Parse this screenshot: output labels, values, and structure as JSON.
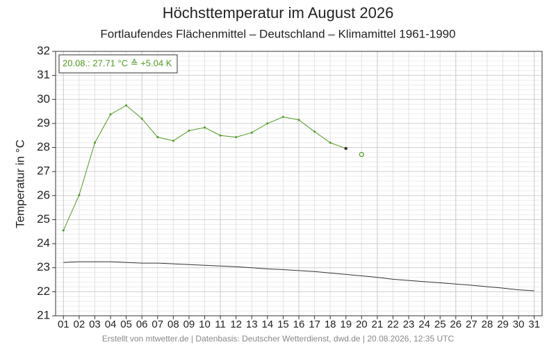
{
  "chart_data": {
    "type": "line",
    "title": "Höchsttemperatur im August 2026",
    "subtitle": "Fortlaufendes Flächenmittel – Deutschland – Klimamittel 1961-1990",
    "ylabel": "Temperatur in °C",
    "footer": "Erstellt von mtwetter.de | Datenbasis: Deutscher Wetterdienst, dwd.de | 20.08.2026, 12:35 UTC",
    "annotation": "20.08.: 27.71 °C ≙ +5.04 K",
    "categories": [
      "01",
      "02",
      "03",
      "04",
      "05",
      "06",
      "07",
      "08",
      "09",
      "10",
      "11",
      "12",
      "13",
      "14",
      "15",
      "16",
      "17",
      "18",
      "19",
      "20",
      "21",
      "22",
      "23",
      "24",
      "25",
      "26",
      "27",
      "28",
      "29",
      "30",
      "31"
    ],
    "series": [
      {
        "color": "#4d9a1e",
        "marker": "dot",
        "values": [
          24.55,
          26.02,
          28.2,
          29.38,
          29.75,
          29.2,
          28.43,
          28.28,
          28.7,
          28.83,
          28.5,
          28.43,
          28.62,
          29.0,
          29.27,
          29.15,
          28.66,
          28.2,
          27.96,
          null,
          null,
          null,
          null,
          null,
          null,
          null,
          null,
          null,
          null,
          null,
          null
        ]
      },
      {
        "color": "#4d9a1e",
        "marker": "open",
        "values": [
          null,
          null,
          null,
          null,
          null,
          null,
          null,
          null,
          null,
          null,
          null,
          null,
          null,
          null,
          null,
          null,
          null,
          null,
          null,
          27.71,
          null,
          null,
          null,
          null,
          null,
          null,
          null,
          null,
          null,
          null,
          null
        ]
      },
      {
        "color": "#333333",
        "marker": "none",
        "values": [
          23.22,
          23.25,
          23.25,
          23.25,
          23.22,
          23.19,
          23.19,
          23.16,
          23.13,
          23.1,
          23.07,
          23.04,
          23.0,
          22.95,
          22.92,
          22.88,
          22.84,
          22.78,
          22.72,
          22.66,
          22.6,
          22.52,
          22.47,
          22.42,
          22.37,
          22.32,
          22.27,
          22.21,
          22.15,
          22.08,
          22.04
        ]
      }
    ],
    "ylim": [
      21,
      32
    ],
    "yticks": [
      21,
      22,
      23,
      24,
      25,
      26,
      27,
      28,
      29,
      30,
      31,
      32
    ],
    "grid": true
  }
}
